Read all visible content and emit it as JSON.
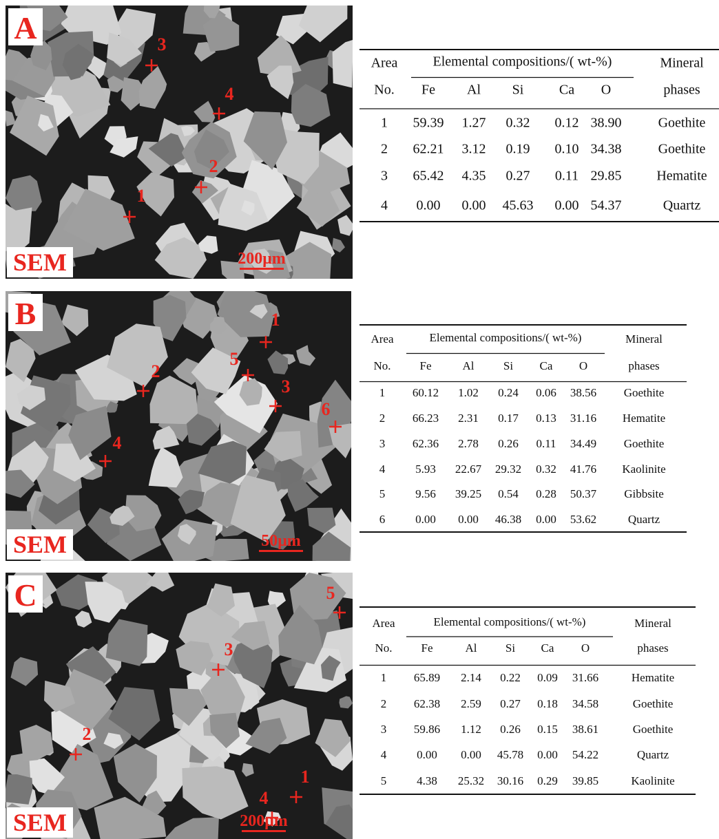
{
  "panels": [
    {
      "label": "A",
      "image": {
        "tag": "SEM",
        "scale_bar": "200μm",
        "points": [
          "1",
          "2",
          "3",
          "4"
        ]
      },
      "table": {
        "header": {
          "area": "Area",
          "no": "No.",
          "elemental": "Elemental compositions/( wt-%)",
          "elements": [
            "Fe",
            "Al",
            "Si",
            "Ca",
            "O"
          ],
          "mineral": "Mineral",
          "phases": "phases"
        },
        "rows": [
          [
            "1",
            "59.39",
            "1.27",
            "0.32",
            "0.12",
            "38.90",
            "Goethite"
          ],
          [
            "2",
            "62.21",
            "3.12",
            "0.19",
            "0.10",
            "34.38",
            "Goethite"
          ],
          [
            "3",
            "65.42",
            "4.35",
            "0.27",
            "0.11",
            "29.85",
            "Hematite"
          ],
          [
            "4",
            "0.00",
            "0.00",
            "45.63",
            "0.00",
            "54.37",
            "Quartz"
          ]
        ]
      }
    },
    {
      "label": "B",
      "image": {
        "tag": "SEM",
        "scale_bar": "50μm",
        "points": [
          "1",
          "2",
          "3",
          "4",
          "5",
          "6"
        ]
      },
      "table": {
        "header": {
          "area": "Area",
          "no": "No.",
          "elemental": "Elemental compositions/( wt-%)",
          "elements": [
            "Fe",
            "Al",
            "Si",
            "Ca",
            "O"
          ],
          "mineral": "Mineral",
          "phases": "phases"
        },
        "rows": [
          [
            "1",
            "60.12",
            "1.02",
            "0.24",
            "0.06",
            "38.56",
            "Goethite"
          ],
          [
            "2",
            "66.23",
            "2.31",
            "0.17",
            "0.13",
            "31.16",
            "Hematite"
          ],
          [
            "3",
            "62.36",
            "2.78",
            "0.26",
            "0.11",
            "34.49",
            "Goethite"
          ],
          [
            "4",
            "5.93",
            "22.67",
            "29.32",
            "0.32",
            "41.76",
            "Kaolinite"
          ],
          [
            "5",
            "9.56",
            "39.25",
            "0.54",
            "0.28",
            "50.37",
            "Gibbsite"
          ],
          [
            "6",
            "0.00",
            "0.00",
            "46.38",
            "0.00",
            "53.62",
            "Quartz"
          ]
        ]
      }
    },
    {
      "label": "C",
      "image": {
        "tag": "SEM",
        "scale_bar": "200μm",
        "points": [
          "1",
          "2",
          "3",
          "4",
          "5"
        ]
      },
      "table": {
        "header": {
          "area": "Area",
          "no": "No.",
          "elemental": "Elemental compositions/( wt-%)",
          "elements": [
            "Fe",
            "Al",
            "Si",
            "Ca",
            "O"
          ],
          "mineral": "Mineral",
          "phases": "phases"
        },
        "rows": [
          [
            "1",
            "65.89",
            "2.14",
            "0.22",
            "0.09",
            "31.66",
            "Hematite"
          ],
          [
            "2",
            "62.38",
            "2.59",
            "0.27",
            "0.18",
            "34.58",
            "Goethite"
          ],
          [
            "3",
            "59.86",
            "1.12",
            "0.26",
            "0.15",
            "38.61",
            "Goethite"
          ],
          [
            "4",
            "0.00",
            "0.00",
            "45.78",
            "0.00",
            "54.22",
            "Quartz"
          ],
          [
            "5",
            "4.38",
            "25.32",
            "30.16",
            "0.29",
            "39.85",
            "Kaolinite"
          ]
        ]
      }
    }
  ]
}
